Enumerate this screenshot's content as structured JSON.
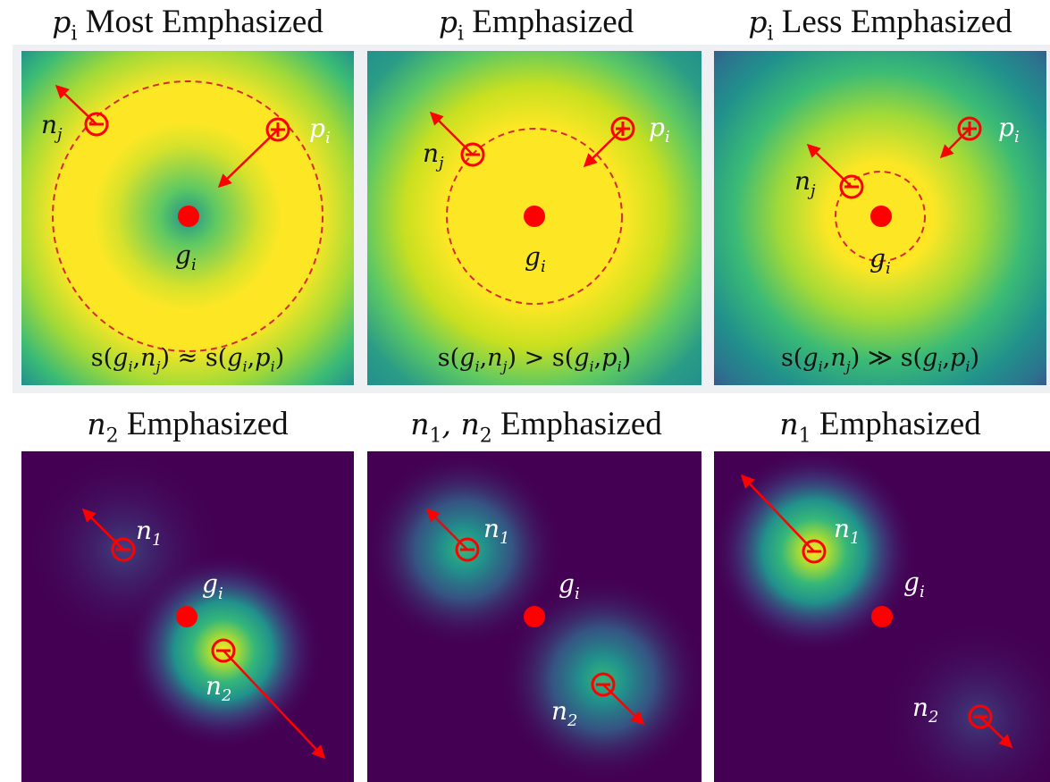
{
  "panels": [
    {
      "title_math": "p",
      "title_sub": "i",
      "title_text": "Most Emphasized",
      "formula_text": "s(g_i, n_j) ≈ s(g_i, p_i)",
      "formula": {
        "lhs": "s(",
        "g": "g",
        "gs": "i",
        "n": "n",
        "ns": "j",
        "op": "≈",
        "p": "p",
        "ps": "i"
      },
      "labels": {
        "n": "n",
        "n_sub": "j",
        "p": "p",
        "p_sub": "i",
        "g": "g",
        "g_sub": "i"
      },
      "colormap": "viridis",
      "style": "ring"
    },
    {
      "title_math": "p",
      "title_sub": "i",
      "title_text": "Emphasized",
      "formula_text": "s(g_i, n_j) > s(g_i, p_i)",
      "formula": {
        "lhs": "s(",
        "g": "g",
        "gs": "i",
        "n": "n",
        "ns": "j",
        "op": ">",
        "p": "p",
        "ps": "i"
      },
      "labels": {
        "n": "n",
        "n_sub": "j",
        "p": "p",
        "p_sub": "i",
        "g": "g",
        "g_sub": "i"
      },
      "colormap": "viridis",
      "style": "ring"
    },
    {
      "title_math": "p",
      "title_sub": "i",
      "title_text": "Less Emphasized",
      "formula_text": "s(g_i, n_j) ≫ s(g_i, p_i)",
      "formula": {
        "lhs": "s(",
        "g": "g",
        "gs": "i",
        "n": "n",
        "ns": "j",
        "op": "≫",
        "p": "p",
        "ps": "i"
      },
      "labels": {
        "n": "n",
        "n_sub": "j",
        "p": "p",
        "p_sub": "i",
        "g": "g",
        "g_sub": "i"
      },
      "colormap": "viridis",
      "style": "ring"
    },
    {
      "title_math": "n",
      "title_sub": "2",
      "title_text": "Emphasized",
      "labels": {
        "n1": "n",
        "n1_sub": "1",
        "n2": "n",
        "n2_sub": "2",
        "g": "g",
        "g_sub": "i"
      },
      "colormap": "viridis",
      "style": "blob"
    },
    {
      "title_math": "n",
      "title_sub": "1",
      "title_text": ", n",
      "title_sub2": "2",
      "title_text2": "Emphasized",
      "labels": {
        "n1": "n",
        "n1_sub": "1",
        "n2": "n",
        "n2_sub": "2",
        "g": "g",
        "g_sub": "i"
      },
      "colormap": "viridis",
      "style": "blob"
    },
    {
      "title_math": "n",
      "title_sub": "1",
      "title_text": "Emphasized",
      "labels": {
        "n1": "n",
        "n1_sub": "1",
        "n2": "n",
        "n2_sub": "2",
        "g": "g",
        "g_sub": "i"
      },
      "colormap": "viridis",
      "style": "blob"
    }
  ],
  "colors": {
    "marker": "#ff0000",
    "circle": "#d52b2b",
    "yellow": "#fde725",
    "green": "#35b779",
    "teal": "#21918c",
    "purple": "#440154"
  }
}
